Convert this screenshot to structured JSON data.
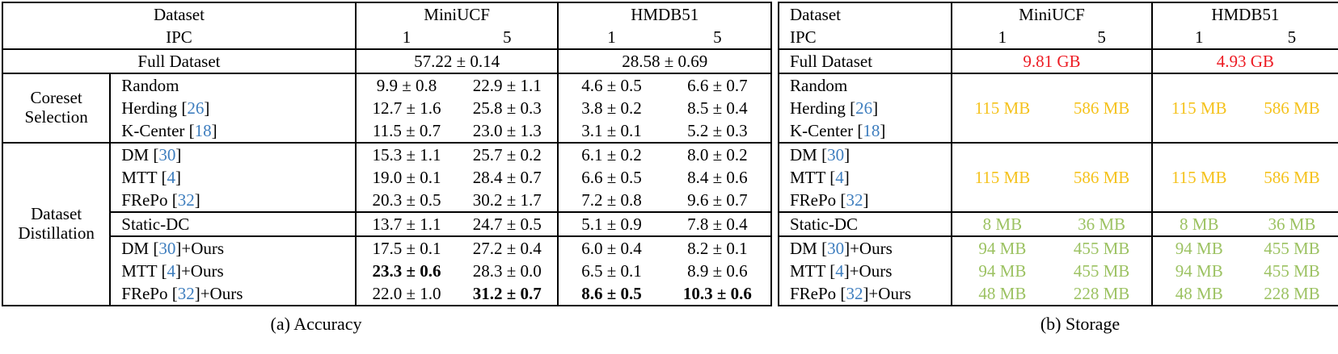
{
  "colors": {
    "red": "#ed1c24",
    "yellow": "#f5c21c",
    "green": "#9cc262",
    "citation": "#3d7dbe"
  },
  "accuracy": {
    "caption": "(a) Accuracy",
    "header": {
      "dataset_label": "Dataset",
      "ipc_label": "IPC",
      "col_groups": [
        "MiniUCF",
        "HMDB51"
      ],
      "ipc_values": [
        "1",
        "5",
        "1",
        "5"
      ]
    },
    "full_dataset": {
      "label": "Full Dataset",
      "values": [
        "57.22 ± 0.14",
        "28.58 ± 0.69"
      ]
    },
    "groups": [
      {
        "label": [
          "Coreset",
          "Selection"
        ],
        "sections": [
          {
            "rows": [
              {
                "method": {
                  "pre": "Random",
                  "cite": "",
                  "post": ""
                },
                "values": [
                  "9.9 ± 0.8",
                  "22.9 ± 1.1",
                  "4.6 ± 0.5",
                  "6.6 ± 0.7"
                ]
              },
              {
                "method": {
                  "pre": "Herding [",
                  "cite": "26",
                  "post": "]"
                },
                "values": [
                  "12.7 ± 1.6",
                  "25.8 ± 0.3",
                  "3.8 ± 0.2",
                  "8.5 ± 0.4"
                ]
              },
              {
                "method": {
                  "pre": "K-Center [",
                  "cite": "18",
                  "post": "]"
                },
                "values": [
                  "11.5 ± 0.7",
                  "23.0 ± 1.3",
                  "3.1 ± 0.1",
                  "5.2 ± 0.3"
                ]
              }
            ]
          }
        ]
      },
      {
        "label": [
          "Dataset",
          "Distillation"
        ],
        "sections": [
          {
            "rows": [
              {
                "method": {
                  "pre": "DM [",
                  "cite": "30",
                  "post": "]"
                },
                "values": [
                  "15.3 ± 1.1",
                  "25.7 ± 0.2",
                  "6.1 ± 0.2",
                  "8.0 ± 0.2"
                ]
              },
              {
                "method": {
                  "pre": "MTT [",
                  "cite": "4",
                  "post": "]"
                },
                "values": [
                  "19.0 ± 0.1",
                  "28.4 ± 0.7",
                  "6.6 ± 0.5",
                  "8.4 ± 0.6"
                ]
              },
              {
                "method": {
                  "pre": "FRePo [",
                  "cite": "32",
                  "post": "]"
                },
                "values": [
                  "20.3 ± 0.5",
                  "30.2 ± 1.7",
                  "7.2 ± 0.8",
                  "9.6 ± 0.7"
                ]
              }
            ]
          },
          {
            "rows": [
              {
                "method": {
                  "pre": "Static-DC",
                  "cite": "",
                  "post": ""
                },
                "values": [
                  "13.7 ± 1.1",
                  "24.7 ± 0.5",
                  "5.1 ± 0.9",
                  "7.8 ± 0.4"
                ]
              }
            ]
          },
          {
            "rows": [
              {
                "method": {
                  "pre": "DM [",
                  "cite": "30",
                  "post": "]+Ours"
                },
                "values": [
                  "17.5 ± 0.1",
                  "27.2 ± 0.4",
                  "6.0 ± 0.4",
                  "8.2 ± 0.1"
                ]
              },
              {
                "method": {
                  "pre": "MTT [",
                  "cite": "4",
                  "post": "]+Ours"
                },
                "values": [
                  "23.3 ± 0.6",
                  "28.3 ± 0.0",
                  "6.5 ± 0.1",
                  "8.9 ± 0.6"
                ],
                "bold": [
                  1,
                  0,
                  0,
                  0
                ]
              },
              {
                "method": {
                  "pre": "FRePo [",
                  "cite": "32",
                  "post": "]+Ours"
                },
                "values": [
                  "22.0 ± 1.0",
                  "31.2 ± 0.7",
                  "8.6 ± 0.5",
                  "10.3 ± 0.6"
                ],
                "bold": [
                  0,
                  1,
                  1,
                  1
                ]
              }
            ]
          }
        ]
      }
    ]
  },
  "storage": {
    "caption": "(b) Storage",
    "header": {
      "dataset_label": "Dataset",
      "ipc_label": "IPC",
      "col_groups": [
        "MiniUCF",
        "HMDB51"
      ],
      "ipc_values": [
        "1",
        "5",
        "1",
        "5"
      ]
    },
    "full_dataset": {
      "label": "Full Dataset",
      "values": [
        "9.81 GB",
        "4.93 GB"
      ],
      "color": "red"
    },
    "sections": [
      {
        "merged": true,
        "color": "yellow",
        "rows": [
          {
            "method": {
              "pre": "Random",
              "cite": "",
              "post": ""
            }
          },
          {
            "method": {
              "pre": "Herding [",
              "cite": "26",
              "post": "]"
            }
          },
          {
            "method": {
              "pre": "K-Center [",
              "cite": "18",
              "post": "]"
            }
          }
        ],
        "values": [
          "115 MB",
          "586 MB",
          "115 MB",
          "586 MB"
        ]
      },
      {
        "merged": true,
        "color": "yellow",
        "rows": [
          {
            "method": {
              "pre": "DM [",
              "cite": "30",
              "post": "]"
            }
          },
          {
            "method": {
              "pre": "MTT [",
              "cite": "4",
              "post": "]"
            }
          },
          {
            "method": {
              "pre": "FRePo [",
              "cite": "32",
              "post": "]"
            }
          }
        ],
        "values": [
          "115 MB",
          "586 MB",
          "115 MB",
          "586 MB"
        ]
      },
      {
        "merged": false,
        "color": "green",
        "rows": [
          {
            "method": {
              "pre": "Static-DC",
              "cite": "",
              "post": ""
            },
            "values": [
              "8 MB",
              "36 MB",
              "8 MB",
              "36 MB"
            ]
          }
        ]
      },
      {
        "merged": false,
        "color": "green",
        "rows": [
          {
            "method": {
              "pre": "DM [",
              "cite": "30",
              "post": "]+Ours"
            },
            "values": [
              "94 MB",
              "455 MB",
              "94 MB",
              "455 MB"
            ]
          },
          {
            "method": {
              "pre": "MTT [",
              "cite": "4",
              "post": "]+Ours"
            },
            "values": [
              "94 MB",
              "455 MB",
              "94 MB",
              "455 MB"
            ]
          },
          {
            "method": {
              "pre": "FRePo [",
              "cite": "32",
              "post": "]+Ours"
            },
            "values": [
              "48 MB",
              "228 MB",
              "48 MB",
              "228 MB"
            ]
          }
        ]
      }
    ]
  }
}
